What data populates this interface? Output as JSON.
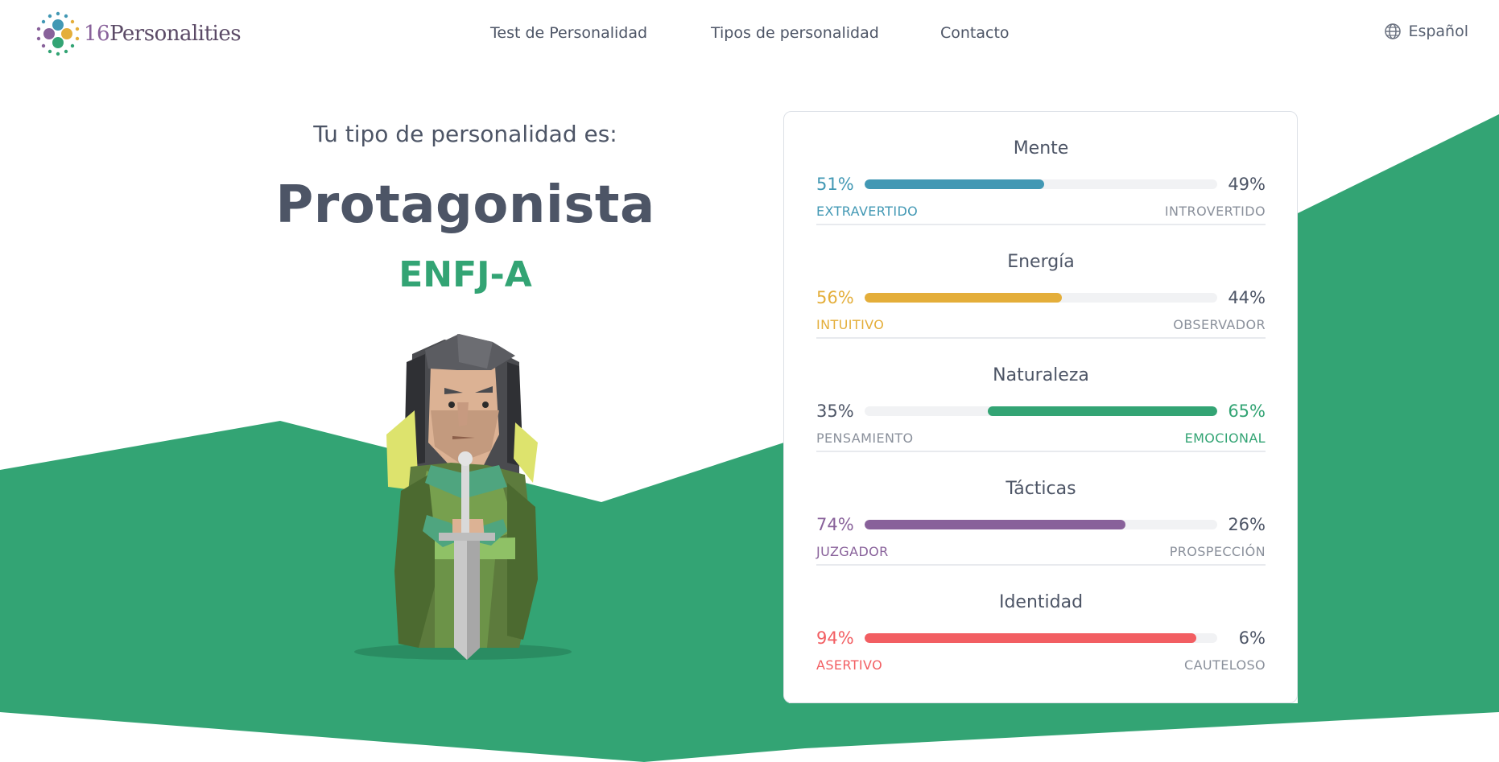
{
  "header": {
    "logo_number": "16",
    "logo_word": "Personalities",
    "nav": [
      {
        "label": "Test de Personalidad"
      },
      {
        "label": "Tipos de personalidad"
      },
      {
        "label": "Contacto"
      }
    ],
    "language_label": "Español"
  },
  "result": {
    "intro": "Tu tipo de personalidad es:",
    "type_name": "Protagonista",
    "type_code": "ENFJ-A"
  },
  "colors": {
    "brand_green": "#33a474",
    "mind_blue": "#4298b4",
    "energy_yellow": "#e4ae3a",
    "tactics_purple": "#88619a",
    "identity_red": "#f25e62",
    "text_dark": "#4d5566"
  },
  "traits": [
    {
      "title": "Mente",
      "left_pct": "51%",
      "right_pct": "49%",
      "left_label": "EXTRAVERTIDO",
      "right_label": "INTROVERTIDO",
      "value": 51,
      "dominant": "left",
      "color": "#4298b4"
    },
    {
      "title": "Energía",
      "left_pct": "56%",
      "right_pct": "44%",
      "left_label": "INTUITIVO",
      "right_label": "OBSERVADOR",
      "value": 56,
      "dominant": "left",
      "color": "#e4ae3a"
    },
    {
      "title": "Naturaleza",
      "left_pct": "35%",
      "right_pct": "65%",
      "left_label": "PENSAMIENTO",
      "right_label": "EMOCIONAL",
      "value": 65,
      "dominant": "right",
      "color": "#33a474"
    },
    {
      "title": "Tácticas",
      "left_pct": "74%",
      "right_pct": "26%",
      "left_label": "JUZGADOR",
      "right_label": "PROSPECCIÓN",
      "value": 74,
      "dominant": "left",
      "color": "#88619a"
    },
    {
      "title": "Identidad",
      "left_pct": "94%",
      "right_pct": "6%",
      "left_label": "ASERTIVO",
      "right_label": "CAUTELOSO",
      "value": 94,
      "dominant": "left",
      "color": "#f25e62"
    }
  ]
}
